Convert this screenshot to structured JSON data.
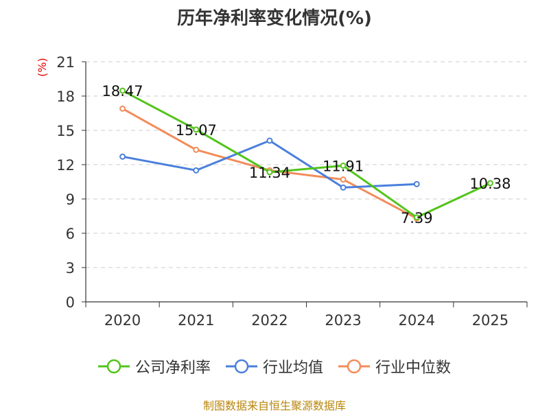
{
  "chart_data": {
    "type": "line",
    "title": "历年净利率变化情况(%)",
    "ylabel": "(%)",
    "xlabel": "",
    "categories": [
      "2020",
      "2021",
      "2022",
      "2023",
      "2024",
      "2025"
    ],
    "ylim": [
      0,
      21
    ],
    "yticks": [
      0,
      3,
      6,
      9,
      12,
      15,
      18,
      21
    ],
    "grid": true,
    "legend_position": "bottom",
    "series": [
      {
        "name": "公司净利率",
        "color": "#52c41a",
        "values": [
          18.47,
          15.07,
          11.34,
          11.91,
          7.39,
          10.38
        ],
        "labels": [
          "18.47",
          "15.07",
          "11.34",
          "11.91",
          "7.39",
          "10.38"
        ]
      },
      {
        "name": "行业均值",
        "color": "#4a7fdc",
        "values": [
          12.7,
          11.5,
          14.1,
          10.0,
          10.3,
          null
        ]
      },
      {
        "name": "行业中位数",
        "color": "#f28c5a",
        "values": [
          16.9,
          13.3,
          11.5,
          10.7,
          7.3,
          null
        ]
      }
    ]
  },
  "source_note": "制图数据来自恒生聚源数据库"
}
